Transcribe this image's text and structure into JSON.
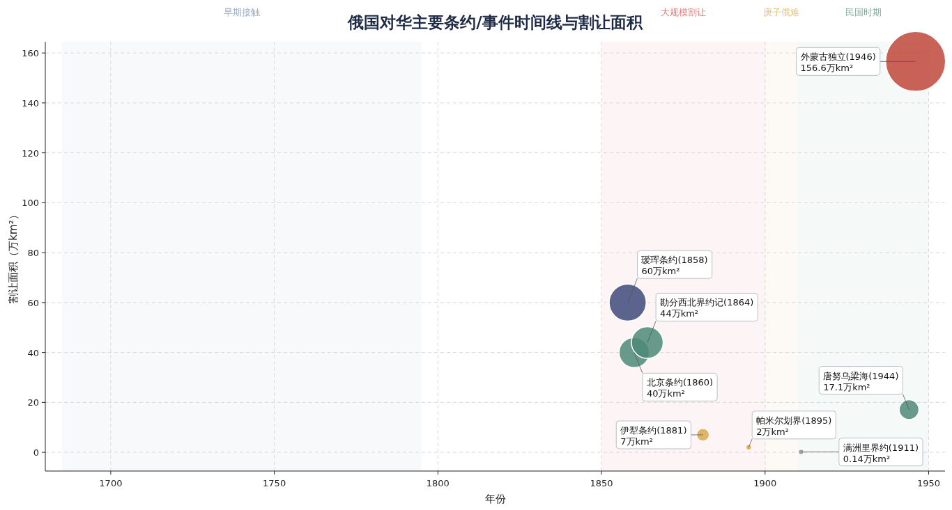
{
  "chart_data": {
    "type": "bubble",
    "title": "俄国对华主要条约/事件时间线与割让面积",
    "xlabel": "年份",
    "ylabel": "割让面积（万km²）",
    "x": [
      1858,
      1860,
      1864,
      1881,
      1895,
      1911,
      1944,
      1946
    ],
    "values": [
      60,
      40,
      44,
      7,
      2,
      0.14,
      17.1,
      156.6
    ],
    "sizes": [
      0.383,
      0.255,
      0.281,
      0.045,
      0.009,
      0.009,
      0.109,
      1
    ],
    "colors": [
      "#3d4a7a",
      "#4d8a78",
      "#4d8a78",
      "#d9a84a",
      "#d9a84a",
      "#8d9ca0",
      "#4d8a78",
      "#c0473a"
    ],
    "xlim": [
      1680,
      1955
    ],
    "xticks": [
      1700,
      1750,
      1800,
      1850,
      1900,
      1950
    ],
    "ylim": [
      -7.5,
      164.5
    ],
    "yticks": [
      0,
      20,
      40,
      60,
      80,
      100,
      120,
      140,
      160
    ],
    "grid": true,
    "bands": [
      {
        "axis": "x",
        "from": 1685,
        "to": 1795,
        "label": "早期接触",
        "color": "#9aaed0"
      },
      {
        "axis": "x",
        "from": 1850,
        "to": 1900,
        "label": "大规模割让",
        "color": "#e07b7b"
      },
      {
        "axis": "x",
        "from": 1900,
        "to": 1910,
        "label": "庚子俄难",
        "color": "#e6c27a"
      },
      {
        "axis": "x",
        "from": 1910,
        "to": 1950,
        "label": "民国时期",
        "color": "#7fae9c"
      }
    ],
    "annotations": [
      {
        "text": "瑷珲条约(1858)\n60万km²",
        "x": 1858,
        "y": 60
      },
      {
        "text": "北京条约(1860)\n40万km²",
        "x": 1860,
        "y": 40
      },
      {
        "text": "勘分西北界约记(1864)\n44万km²",
        "x": 1864,
        "y": 44
      },
      {
        "text": "伊犁条约(1881)\n7万km²",
        "x": 1881,
        "y": 7
      },
      {
        "text": "帕米尔划界(1895)\n2万km²",
        "x": 1895,
        "y": 2
      },
      {
        "text": "满洲里界约(1911)\n0.14万km²",
        "x": 1911,
        "y": 0.14
      },
      {
        "text": "唐努乌梁海(1944)\n17.1万km²",
        "x": 1944,
        "y": 17.1
      },
      {
        "text": "外蒙古独立(1946)\n156.6万km²",
        "x": 1946,
        "y": 156.6
      }
    ]
  }
}
